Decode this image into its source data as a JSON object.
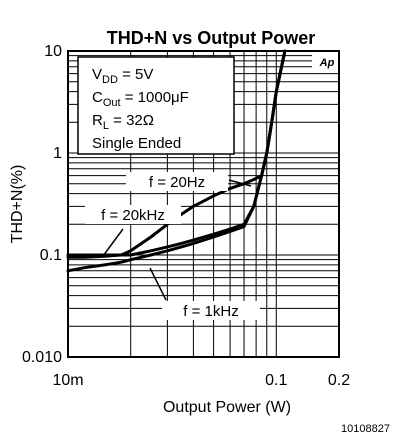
{
  "chart_data": {
    "type": "line",
    "title": "THD+N vs Output Power",
    "xlabel": "Output Power (W)",
    "ylabel": "THD+N(%)",
    "x_scale": "log",
    "y_scale": "log",
    "xlim": [
      0.01,
      0.2
    ],
    "ylim": [
      0.01,
      10
    ],
    "x_tick_labels": [
      {
        "value": 0.01,
        "label": "10m"
      },
      {
        "value": 0.1,
        "label": "0.1"
      },
      {
        "value": 0.2,
        "label": "0.2"
      }
    ],
    "y_tick_labels": [
      {
        "value": 10,
        "label": "10"
      },
      {
        "value": 1,
        "label": "1"
      },
      {
        "value": 0.1,
        "label": "0.1"
      },
      {
        "value": 0.01,
        "label": "0.010"
      }
    ],
    "grid": true,
    "conditions_box": {
      "vdd": "V",
      "vdd_sub": "DD",
      "vdd_value": " = 5V",
      "cout": "C",
      "cout_sub": "Out",
      "cout_value": " = 1000μF",
      "rl": "R",
      "rl_sub": "L",
      "rl_value": "  = 32Ω",
      "mode": "Single Ended"
    },
    "logo_text": "Ap",
    "series": [
      {
        "name": "f = 20Hz",
        "x": [
          0.01,
          0.012,
          0.015,
          0.018,
          0.02,
          0.025,
          0.03,
          0.035,
          0.04,
          0.05,
          0.06,
          0.07,
          0.078,
          0.085,
          0.09,
          0.095,
          0.1,
          0.11
        ],
        "y": [
          0.1,
          0.1,
          0.1,
          0.1,
          0.1,
          0.11,
          0.12,
          0.13,
          0.14,
          0.16,
          0.18,
          0.2,
          0.3,
          0.6,
          1.0,
          2.0,
          4.0,
          10.0
        ]
      },
      {
        "name": "f = 20kHz",
        "x": [
          0.01,
          0.012,
          0.015,
          0.018,
          0.02,
          0.025,
          0.03,
          0.035,
          0.04,
          0.05,
          0.06,
          0.07,
          0.078,
          0.085,
          0.09,
          0.095,
          0.1,
          0.11
        ],
        "y": [
          0.095,
          0.095,
          0.097,
          0.1,
          0.11,
          0.15,
          0.2,
          0.25,
          0.3,
          0.38,
          0.45,
          0.5,
          0.55,
          0.6,
          1.0,
          2.0,
          4.0,
          10.0
        ]
      },
      {
        "name": "f = 1kHz",
        "x": [
          0.01,
          0.012,
          0.015,
          0.018,
          0.02,
          0.025,
          0.03,
          0.035,
          0.04,
          0.05,
          0.06,
          0.07,
          0.078,
          0.085,
          0.09,
          0.095,
          0.1,
          0.11
        ],
        "y": [
          0.07,
          0.075,
          0.08,
          0.085,
          0.09,
          0.1,
          0.11,
          0.12,
          0.13,
          0.15,
          0.17,
          0.19,
          0.3,
          0.6,
          1.0,
          2.0,
          4.0,
          10.0
        ]
      }
    ],
    "annotations": [
      "f = 20Hz",
      "f = 20kHz",
      "f = 1kHz"
    ],
    "figure_id": "10108827"
  }
}
